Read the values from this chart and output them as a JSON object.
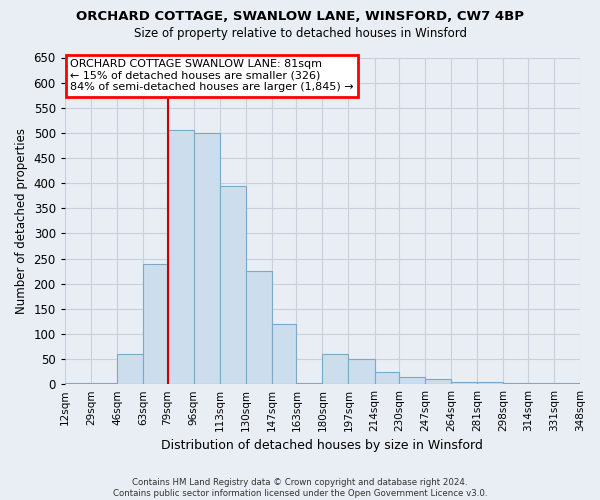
{
  "title": "ORCHARD COTTAGE, SWANLOW LANE, WINSFORD, CW7 4BP",
  "subtitle": "Size of property relative to detached houses in Winsford",
  "xlabel": "Distribution of detached houses by size in Winsford",
  "ylabel": "Number of detached properties",
  "footer_line1": "Contains HM Land Registry data © Crown copyright and database right 2024.",
  "footer_line2": "Contains public sector information licensed under the Open Government Licence v3.0.",
  "annotation_line1": "ORCHARD COTTAGE SWANLOW LANE: 81sqm",
  "annotation_line2": "← 15% of detached houses are smaller (326)",
  "annotation_line3": "84% of semi-detached houses are larger (1,845) →",
  "bar_color": "#ccdded",
  "bar_edge_color": "#7aaac8",
  "vline_color": "#cc0000",
  "vline_x": 79,
  "ylim": [
    0,
    650
  ],
  "yticks": [
    0,
    50,
    100,
    150,
    200,
    250,
    300,
    350,
    400,
    450,
    500,
    550,
    600,
    650
  ],
  "bin_edges": [
    12,
    29,
    46,
    63,
    79,
    96,
    113,
    130,
    147,
    163,
    180,
    197,
    214,
    230,
    247,
    264,
    281,
    298,
    314,
    331,
    348
  ],
  "bin_labels": [
    "12sqm",
    "29sqm",
    "46sqm",
    "63sqm",
    "79sqm",
    "96sqm",
    "113sqm",
    "130sqm",
    "147sqm",
    "163sqm",
    "180sqm",
    "197sqm",
    "214sqm",
    "230sqm",
    "247sqm",
    "264sqm",
    "281sqm",
    "298sqm",
    "314sqm",
    "331sqm",
    "348sqm"
  ],
  "bar_heights": [
    2,
    2,
    60,
    240,
    505,
    500,
    395,
    225,
    120,
    2,
    60,
    50,
    25,
    15,
    10,
    5,
    5,
    2,
    2,
    2
  ],
  "background_color": "#e8eef4",
  "plot_bg_color": "#e8eef4",
  "grid_color": "#c8d0dc"
}
